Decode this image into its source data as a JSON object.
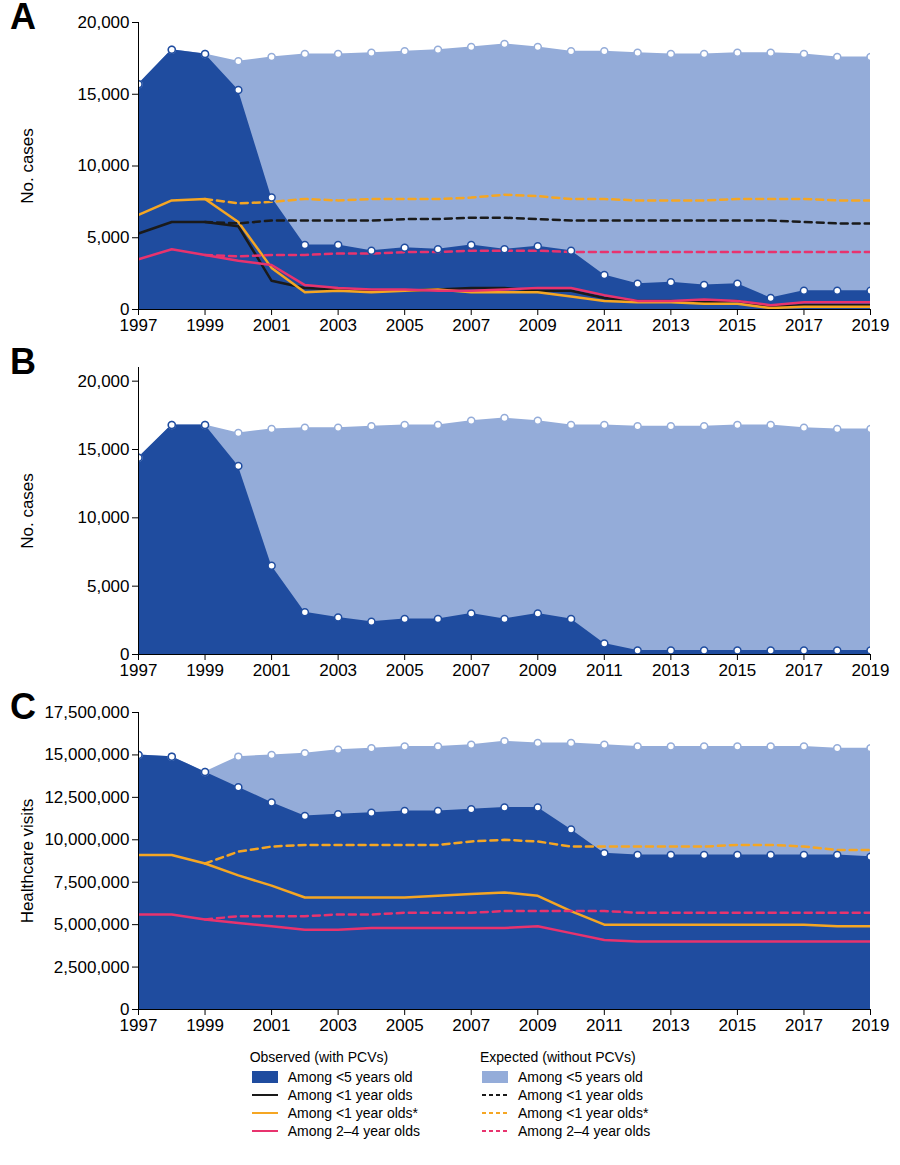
{
  "legend_groups": [
    "Observed (with PCVs)",
    "Expected (without PCVs)"
  ],
  "chart_data": [
    {
      "type": "area",
      "title": "A",
      "y_label": "No. cases",
      "x": [
        1997,
        1998,
        1999,
        2000,
        2001,
        2002,
        2003,
        2004,
        2005,
        2006,
        2007,
        2008,
        2009,
        2010,
        2011,
        2012,
        2013,
        2014,
        2015,
        2016,
        2017,
        2018,
        2019
      ],
      "xlim": [
        1997,
        2019
      ],
      "xticks": [
        1997,
        1999,
        2001,
        2003,
        2005,
        2007,
        2009,
        2011,
        2013,
        2015,
        2017,
        2019
      ],
      "ylim": [
        0,
        20000
      ],
      "yticks": [
        0,
        {
          "value": 5000,
          "label": "5,000"
        },
        {
          "value": 10000,
          "label": "10,000"
        },
        {
          "value": 15000,
          "label": "15,000"
        },
        {
          "value": 20000,
          "label": "20,000"
        }
      ],
      "grid": false,
      "series": [
        {
          "name": "Among <5 years old",
          "group": "Expected (without PCVs)",
          "type": "area",
          "marker": "circle",
          "color": "#94acd9",
          "values": [
            15700,
            18100,
            17800,
            17300,
            17600,
            17800,
            17800,
            17900,
            18000,
            18100,
            18300,
            18500,
            18300,
            18000,
            18000,
            17900,
            17800,
            17800,
            17900,
            17900,
            17800,
            17600,
            17600
          ]
        },
        {
          "name": "Among <5 years old",
          "group": "Observed (with PCVs)",
          "type": "area",
          "marker": "circle",
          "color": "#1f4c9f",
          "values": [
            15700,
            18100,
            17800,
            15300,
            7800,
            4500,
            4500,
            4100,
            4300,
            4200,
            4500,
            4200,
            4400,
            4100,
            2400,
            1800,
            1900,
            1700,
            1800,
            800,
            1300,
            1300,
            1300
          ]
        },
        {
          "name": "Among <1 year olds",
          "group": "Observed (with PCVs)",
          "type": "line",
          "line_style": "solid",
          "color": "#1a1a1a",
          "values": [
            5300,
            6100,
            6100,
            5800,
            2000,
            1500,
            1400,
            1300,
            1300,
            1400,
            1500,
            1500,
            1300,
            1300,
            800,
            600,
            600,
            500,
            600,
            200,
            300,
            300,
            300
          ]
        },
        {
          "name": "Among <1 year olds*",
          "group": "Observed (with PCVs)",
          "type": "line",
          "line_style": "solid",
          "color": "#f5a623",
          "values": [
            6600,
            7600,
            7700,
            6100,
            2900,
            1200,
            1300,
            1200,
            1300,
            1400,
            1200,
            1200,
            1200,
            900,
            600,
            500,
            500,
            400,
            400,
            100,
            200,
            200,
            200
          ]
        },
        {
          "name": "Among 2–4 year olds",
          "group": "Observed (with PCVs)",
          "type": "line",
          "line_style": "solid",
          "color": "#e8336e",
          "values": [
            3500,
            4200,
            3800,
            3400,
            3100,
            1700,
            1500,
            1400,
            1400,
            1300,
            1300,
            1400,
            1500,
            1500,
            1000,
            600,
            600,
            700,
            600,
            300,
            500,
            500,
            500
          ]
        },
        {
          "name": "Among <1 year olds",
          "group": "Expected (without PCVs)",
          "type": "line",
          "line_style": "dashed",
          "color": "#1a1a1a",
          "values": [
            null,
            null,
            6100,
            6000,
            6200,
            6200,
            6200,
            6200,
            6300,
            6300,
            6400,
            6400,
            6300,
            6200,
            6200,
            6200,
            6200,
            6200,
            6200,
            6200,
            6100,
            6000,
            6000
          ]
        },
        {
          "name": "Among <1 year olds*",
          "group": "Expected (without PCVs)",
          "type": "line",
          "line_style": "dashed",
          "color": "#f5a623",
          "values": [
            null,
            null,
            7700,
            7400,
            7500,
            7700,
            7600,
            7700,
            7700,
            7700,
            7800,
            8000,
            7900,
            7700,
            7700,
            7600,
            7600,
            7600,
            7700,
            7700,
            7700,
            7600,
            7600
          ]
        },
        {
          "name": "Among 2–4 year olds",
          "group": "Expected (without PCVs)",
          "type": "line",
          "line_style": "dashed",
          "color": "#e8336e",
          "values": [
            null,
            null,
            3800,
            3700,
            3800,
            3800,
            3900,
            3900,
            4000,
            4000,
            4100,
            4100,
            4100,
            4000,
            4000,
            4000,
            4000,
            4000,
            4000,
            4000,
            4000,
            4000,
            4000
          ]
        }
      ]
    },
    {
      "type": "area",
      "title": "B",
      "y_label": "No. cases",
      "x": [
        1997,
        1998,
        1999,
        2000,
        2001,
        2002,
        2003,
        2004,
        2005,
        2006,
        2007,
        2008,
        2009,
        2010,
        2011,
        2012,
        2013,
        2014,
        2015,
        2016,
        2017,
        2018,
        2019
      ],
      "xlim": [
        1997,
        2019
      ],
      "xticks": [
        1997,
        1999,
        2001,
        2003,
        2005,
        2007,
        2009,
        2011,
        2013,
        2015,
        2017,
        2019
      ],
      "ylim": [
        0,
        21000
      ],
      "yticks": [
        0,
        {
          "value": 5000,
          "label": "5,000"
        },
        {
          "value": 10000,
          "label": "10,000"
        },
        {
          "value": 15000,
          "label": "15,000"
        },
        {
          "value": 20000,
          "label": "20,000"
        }
      ],
      "grid": false,
      "series": [
        {
          "name": "Among <5 years old",
          "group": "Expected (without PCVs)",
          "type": "area",
          "marker": "circle",
          "color": "#94acd9",
          "values": [
            14400,
            16800,
            16800,
            16200,
            16500,
            16600,
            16600,
            16700,
            16800,
            16800,
            17100,
            17300,
            17100,
            16800,
            16800,
            16700,
            16700,
            16700,
            16800,
            16800,
            16600,
            16500,
            16500
          ]
        },
        {
          "name": "Among <5 years old",
          "group": "Observed (with PCVs)",
          "type": "area",
          "marker": "circle",
          "color": "#1f4c9f",
          "values": [
            14400,
            16800,
            16800,
            13800,
            6500,
            3100,
            2700,
            2400,
            2600,
            2600,
            3000,
            2600,
            3000,
            2600,
            800,
            300,
            300,
            300,
            300,
            300,
            300,
            300,
            300
          ]
        }
      ]
    },
    {
      "type": "area",
      "title": "C",
      "y_label": "Healthcare visits",
      "x": [
        1997,
        1998,
        1999,
        2000,
        2001,
        2002,
        2003,
        2004,
        2005,
        2006,
        2007,
        2008,
        2009,
        2010,
        2011,
        2012,
        2013,
        2014,
        2015,
        2016,
        2017,
        2018,
        2019
      ],
      "xlim": [
        1997,
        2019
      ],
      "xticks": [
        1997,
        1999,
        2001,
        2003,
        2005,
        2007,
        2009,
        2011,
        2013,
        2015,
        2017,
        2019
      ],
      "ylim": [
        0,
        17500000
      ],
      "yticks": [
        0,
        {
          "value": 2500000,
          "label": "2,500,000"
        },
        {
          "value": 5000000,
          "label": "5,000,000"
        },
        {
          "value": 7500000,
          "label": "7,500,000"
        },
        {
          "value": 10000000,
          "label": "10,000,000"
        },
        {
          "value": 12500000,
          "label": "12,500,000"
        },
        {
          "value": 15000000,
          "label": "15,000,000"
        },
        {
          "value": 17500000,
          "label": "17,500,000"
        }
      ],
      "grid": false,
      "series": [
        {
          "name": "Among <5 years old",
          "group": "Expected (without PCVs)",
          "type": "area",
          "marker": "circle",
          "color": "#94acd9",
          "values": [
            15000000,
            14900000,
            14000000,
            14900000,
            15000000,
            15100000,
            15300000,
            15400000,
            15500000,
            15500000,
            15600000,
            15800000,
            15700000,
            15700000,
            15600000,
            15500000,
            15500000,
            15500000,
            15500000,
            15500000,
            15500000,
            15400000,
            15400000
          ]
        },
        {
          "name": "Among <5 years old",
          "group": "Observed (with PCVs)",
          "type": "area",
          "marker": "circle",
          "color": "#1f4c9f",
          "values": [
            15000000,
            14900000,
            14000000,
            13100000,
            12200000,
            11400000,
            11500000,
            11600000,
            11700000,
            11700000,
            11800000,
            11900000,
            11900000,
            10600000,
            9200000,
            9100000,
            9100000,
            9100000,
            9100000,
            9100000,
            9100000,
            9100000,
            9000000
          ]
        },
        {
          "name": "Among <1 year olds*",
          "group": "Observed (with PCVs)",
          "type": "line",
          "line_style": "solid",
          "color": "#f5a623",
          "values": [
            9100000,
            9100000,
            8600000,
            7900000,
            7300000,
            6600000,
            6600000,
            6600000,
            6600000,
            6700000,
            6800000,
            6900000,
            6700000,
            5800000,
            5000000,
            5000000,
            5000000,
            5000000,
            5000000,
            5000000,
            5000000,
            4900000,
            4900000
          ]
        },
        {
          "name": "Among 2–4 year olds",
          "group": "Observed (with PCVs)",
          "type": "line",
          "line_style": "solid",
          "color": "#e8336e",
          "values": [
            5600000,
            5600000,
            5300000,
            5100000,
            4900000,
            4700000,
            4700000,
            4800000,
            4800000,
            4800000,
            4800000,
            4800000,
            4900000,
            4500000,
            4100000,
            4000000,
            4000000,
            4000000,
            4000000,
            4000000,
            4000000,
            4000000,
            4000000
          ]
        },
        {
          "name": "Among <1 year olds*",
          "group": "Expected (without PCVs)",
          "type": "line",
          "line_style": "dashed",
          "color": "#f5a623",
          "values": [
            null,
            null,
            8600000,
            9300000,
            9600000,
            9700000,
            9700000,
            9700000,
            9700000,
            9700000,
            9900000,
            10000000,
            9900000,
            9600000,
            9600000,
            9600000,
            9600000,
            9600000,
            9700000,
            9700000,
            9600000,
            9400000,
            9400000
          ]
        },
        {
          "name": "Among 2–4 year olds",
          "group": "Expected (without PCVs)",
          "type": "line",
          "line_style": "dashed",
          "color": "#e8336e",
          "values": [
            null,
            null,
            5300000,
            5500000,
            5500000,
            5500000,
            5600000,
            5600000,
            5700000,
            5700000,
            5700000,
            5800000,
            5800000,
            5800000,
            5800000,
            5700000,
            5700000,
            5700000,
            5700000,
            5700000,
            5700000,
            5700000,
            5700000
          ]
        }
      ]
    }
  ]
}
